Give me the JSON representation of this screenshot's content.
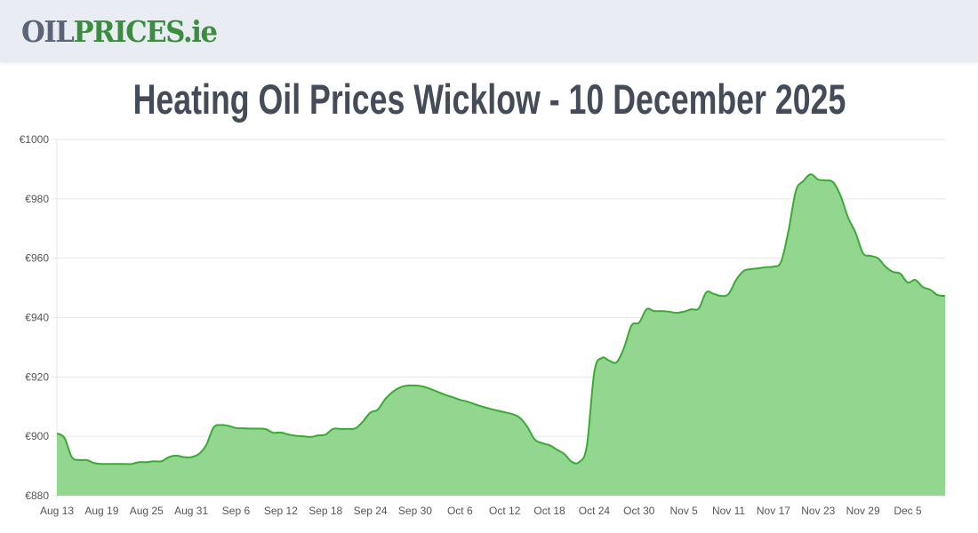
{
  "header": {
    "logo_part1": "OIL",
    "logo_part2": "PRICES.ie"
  },
  "page_title": "Heating Oil Prices Wicklow - 10 December 2025",
  "colors": {
    "line": "#3aaa35",
    "fill": "#92d68f",
    "grid": "#e6e6e6",
    "logo_grey": "#5a6577",
    "logo_green": "#3a8d3f"
  },
  "chart_data": {
    "type": "area",
    "title": "Heating Oil Prices Wicklow - 10 December 2025",
    "xlabel": "",
    "ylabel": "",
    "ylim": [
      880,
      1000
    ],
    "y_ticks": [
      "€1000",
      "€980",
      "€960",
      "€940",
      "€920",
      "€900",
      "€880"
    ],
    "x_ticks": [
      "Aug 13",
      "Aug 19",
      "Aug 25",
      "Aug 31",
      "Sep 6",
      "Sep 12",
      "Sep 18",
      "Sep 24",
      "Sep 30",
      "Oct 6",
      "Oct 12",
      "Oct 18",
      "Oct 24",
      "Oct 30",
      "Nov 5",
      "Nov 11",
      "Nov 17",
      "Nov 23",
      "Nov 29",
      "Dec 5"
    ],
    "grid": true,
    "legend": "none",
    "x": [
      "Aug 13",
      "Aug 14",
      "Aug 15",
      "Aug 16",
      "Aug 17",
      "Aug 18",
      "Aug 19",
      "Aug 20",
      "Aug 21",
      "Aug 22",
      "Aug 23",
      "Aug 24",
      "Aug 25",
      "Aug 26",
      "Aug 27",
      "Aug 28",
      "Aug 29",
      "Aug 30",
      "Aug 31",
      "Sep 1",
      "Sep 2",
      "Sep 3",
      "Sep 4",
      "Sep 5",
      "Sep 6",
      "Sep 7",
      "Sep 8",
      "Sep 9",
      "Sep 10",
      "Sep 11",
      "Sep 12",
      "Sep 13",
      "Sep 14",
      "Sep 15",
      "Sep 16",
      "Sep 17",
      "Sep 18",
      "Sep 19",
      "Sep 20",
      "Sep 21",
      "Sep 22",
      "Sep 23",
      "Sep 24",
      "Sep 25",
      "Sep 26",
      "Sep 27",
      "Sep 28",
      "Sep 29",
      "Sep 30",
      "Oct 1",
      "Oct 2",
      "Oct 3",
      "Oct 4",
      "Oct 5",
      "Oct 6",
      "Oct 7",
      "Oct 8",
      "Oct 9",
      "Oct 10",
      "Oct 11",
      "Oct 12",
      "Oct 13",
      "Oct 14",
      "Oct 15",
      "Oct 16",
      "Oct 17",
      "Oct 18",
      "Oct 19",
      "Oct 20",
      "Oct 21",
      "Oct 22",
      "Oct 23",
      "Oct 24",
      "Oct 25",
      "Oct 26",
      "Oct 27",
      "Oct 28",
      "Oct 29",
      "Oct 30",
      "Oct 31",
      "Nov 1",
      "Nov 2",
      "Nov 3",
      "Nov 4",
      "Nov 5",
      "Nov 6",
      "Nov 7",
      "Nov 8",
      "Nov 9",
      "Nov 10",
      "Nov 11",
      "Nov 12",
      "Nov 13",
      "Nov 14",
      "Nov 15",
      "Nov 16",
      "Nov 17",
      "Nov 18",
      "Nov 19",
      "Nov 20",
      "Nov 21",
      "Nov 22",
      "Nov 23",
      "Nov 24",
      "Nov 25",
      "Nov 26",
      "Nov 27",
      "Nov 28",
      "Nov 29",
      "Nov 30",
      "Dec 1",
      "Dec 2",
      "Dec 3",
      "Dec 4",
      "Dec 5",
      "Dec 6",
      "Dec 7",
      "Dec 8",
      "Dec 9",
      "Dec 10"
    ],
    "values": [
      901,
      899.5,
      893,
      892,
      892,
      891,
      890.7,
      890.7,
      890.7,
      890.7,
      890.7,
      891.3,
      891.3,
      891.6,
      891.6,
      893,
      893.5,
      893,
      893,
      894,
      897,
      903,
      903.8,
      903.5,
      902.8,
      902.7,
      902.6,
      902.6,
      902.4,
      901.2,
      901.3,
      900.6,
      900.2,
      900,
      899.8,
      900.3,
      900.6,
      902.5,
      902.5,
      902.5,
      902.7,
      905,
      908,
      909,
      912.6,
      915,
      916.5,
      917.1,
      917.1,
      916.8,
      916,
      915,
      914,
      913.2,
      912.3,
      911.7,
      910.8,
      910,
      909.3,
      908.7,
      908.1,
      907.5,
      906.3,
      903.3,
      899,
      897.7,
      897,
      895.5,
      894,
      891.4,
      891.4,
      896.8,
      921.6,
      926.4,
      925.5,
      925,
      930,
      937.4,
      938.3,
      942.8,
      942.2,
      942.2,
      942,
      941.6,
      942,
      942.8,
      943.1,
      948.5,
      948,
      947.3,
      948,
      952.7,
      955.7,
      956.3,
      956.6,
      957,
      957.2,
      958.7,
      969,
      982.6,
      986,
      988.3,
      986.5,
      986.2,
      985.6,
      981,
      973.7,
      968.6,
      961.7,
      960.8,
      960,
      957.2,
      955.4,
      954.8,
      951.8,
      952.7,
      950.3,
      949.4,
      947.6,
      947.3
    ]
  }
}
